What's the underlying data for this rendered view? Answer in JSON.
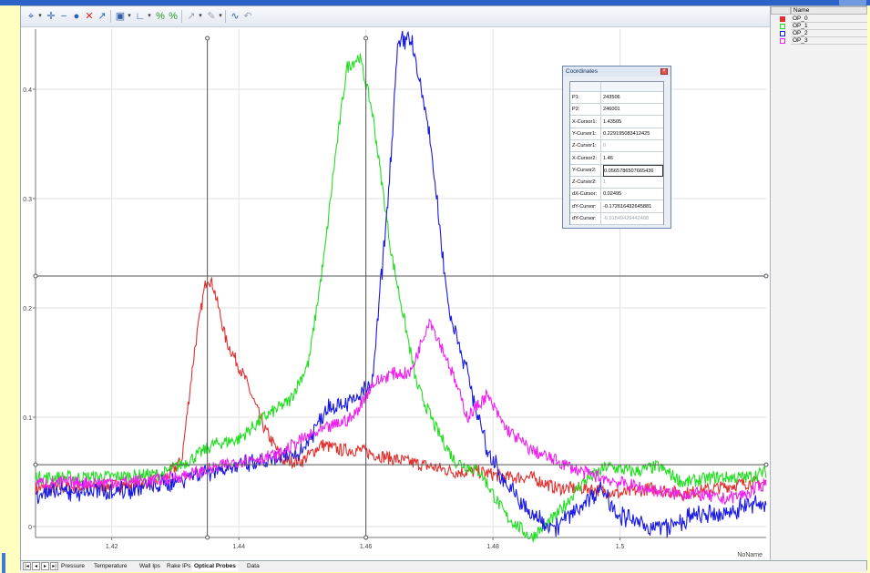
{
  "coordinates": {
    "title": "Coordinates",
    "rows": [
      {
        "key": "P1:",
        "value": "243506"
      },
      {
        "key": "P2:",
        "value": "246001"
      },
      {
        "key": "X-Cursor1:",
        "value": "1.43505"
      },
      {
        "key": "Y-Cursor1:",
        "value": "0.229195083412425"
      },
      {
        "key": "Z-Cursor1:",
        "value": "0"
      },
      {
        "key": "X-Cursor2:",
        "value": "1.46"
      },
      {
        "key": "Y-Cursor2:",
        "value": "0.0565786507665436"
      },
      {
        "key": "Z-Cursor2:",
        "value": "1"
      },
      {
        "key": "dX-Cursor:",
        "value": "0.02495"
      },
      {
        "key": "dY-Cursor:",
        "value": "-0.172616432645881"
      },
      {
        "key": "dY-Cursor:",
        "value": "-6.91849429442488"
      }
    ]
  },
  "legend": {
    "header": "Name",
    "items": [
      {
        "name": "OP_0",
        "color": "#e03030",
        "checked": true
      },
      {
        "name": "OP_1",
        "color": "#22dd22"
      },
      {
        "name": "OP_2",
        "color": "#1a1ae0"
      },
      {
        "name": "OP_3",
        "color": "#ee22ee"
      }
    ]
  },
  "tabs": [
    "Pressure",
    "Temperature",
    "Wall Ips",
    "Rake IPs",
    "Optical Probes",
    "Data"
  ],
  "active_tab": "Optical Probes",
  "toolbar_icons": [
    "select-icon",
    "pan-icon",
    "zoom-out-icon",
    "hand-icon",
    "delete-cursor-icon",
    "cursor-icon",
    "frame-icon",
    "axis-icon",
    "fit-x-icon",
    "fit-y-icon",
    "pointer-icon",
    "edit-icon",
    "measure-icon",
    "undo-icon"
  ],
  "chart_data": {
    "type": "line",
    "xlabel": "NoName",
    "xlim": [
      1.408,
      1.523
    ],
    "ylim": [
      -0.01,
      0.455
    ],
    "x_ticks": [
      1.42,
      1.44,
      1.46,
      1.48,
      1.5
    ],
    "x_tick_labels": [
      "1.42",
      "1.44",
      "1.46",
      "1.48",
      "1.5"
    ],
    "y_ticks": [
      0,
      0.1,
      0.2,
      0.3,
      0.4
    ],
    "y_tick_labels": [
      "0",
      "0.1",
      "0.2",
      "0.3",
      "0.4"
    ],
    "cursors": {
      "x1": 1.43505,
      "x2": 1.46,
      "y1": 0.229195,
      "y2": 0.056579
    },
    "grid": true,
    "series": [
      {
        "name": "OP_0",
        "color": "#e03030",
        "x": [
          1.408,
          1.415,
          1.422,
          1.428,
          1.431,
          1.433,
          1.4345,
          1.43505,
          1.436,
          1.438,
          1.441,
          1.444,
          1.447,
          1.45,
          1.453,
          1.456,
          1.459,
          1.462,
          1.466,
          1.47,
          1.474,
          1.478,
          1.482,
          1.486,
          1.49,
          1.495,
          1.5,
          1.505,
          1.51,
          1.515,
          1.52,
          1.523
        ],
        "y": [
          0.035,
          0.036,
          0.038,
          0.042,
          0.06,
          0.16,
          0.215,
          0.229,
          0.22,
          0.17,
          0.135,
          0.09,
          0.06,
          0.06,
          0.075,
          0.07,
          0.07,
          0.065,
          0.06,
          0.055,
          0.05,
          0.05,
          0.045,
          0.045,
          0.035,
          0.035,
          0.03,
          0.035,
          0.03,
          0.035,
          0.04,
          0.04
        ]
      },
      {
        "name": "OP_1",
        "color": "#22dd22",
        "x": [
          1.408,
          1.415,
          1.422,
          1.428,
          1.432,
          1.436,
          1.44,
          1.444,
          1.448,
          1.451,
          1.4535,
          1.455,
          1.457,
          1.459,
          1.461,
          1.464,
          1.468,
          1.471,
          1.474,
          1.478,
          1.482,
          1.486,
          1.49,
          1.494,
          1.498,
          1.502,
          1.506,
          1.51,
          1.515,
          1.52,
          1.523
        ],
        "y": [
          0.045,
          0.045,
          0.046,
          0.048,
          0.06,
          0.075,
          0.08,
          0.1,
          0.115,
          0.15,
          0.25,
          0.33,
          0.42,
          0.43,
          0.38,
          0.25,
          0.13,
          0.09,
          0.06,
          0.05,
          0.01,
          -0.01,
          0.01,
          0.04,
          0.055,
          0.05,
          0.055,
          0.04,
          0.045,
          0.045,
          0.05
        ]
      },
      {
        "name": "OP_2",
        "color": "#1a1ae0",
        "x": [
          1.408,
          1.415,
          1.422,
          1.428,
          1.434,
          1.44,
          1.446,
          1.45,
          1.454,
          1.458,
          1.461,
          1.4635,
          1.465,
          1.467,
          1.47,
          1.473,
          1.476,
          1.479,
          1.482,
          1.486,
          1.49,
          1.494,
          1.497,
          1.5,
          1.504,
          1.508,
          1.512,
          1.516,
          1.52,
          1.523
        ],
        "y": [
          0.03,
          0.032,
          0.034,
          0.038,
          0.05,
          0.055,
          0.06,
          0.07,
          0.11,
          0.115,
          0.13,
          0.3,
          0.44,
          0.45,
          0.36,
          0.2,
          0.14,
          0.07,
          0.04,
          0.01,
          0.0,
          0.02,
          0.035,
          0.01,
          0.0,
          0.0,
          0.01,
          0.01,
          0.02,
          0.02
        ]
      },
      {
        "name": "OP_3",
        "color": "#ee22ee",
        "x": [
          1.408,
          1.415,
          1.422,
          1.428,
          1.434,
          1.44,
          1.446,
          1.45,
          1.454,
          1.458,
          1.461,
          1.464,
          1.467,
          1.47,
          1.473,
          1.476,
          1.479,
          1.482,
          1.486,
          1.49,
          1.494,
          1.497,
          1.5,
          1.504,
          1.508,
          1.512,
          1.516,
          1.52,
          1.523
        ],
        "y": [
          0.04,
          0.04,
          0.041,
          0.043,
          0.05,
          0.06,
          0.065,
          0.08,
          0.09,
          0.1,
          0.13,
          0.14,
          0.14,
          0.19,
          0.15,
          0.1,
          0.12,
          0.09,
          0.07,
          0.06,
          0.05,
          0.045,
          0.04,
          0.035,
          0.03,
          0.03,
          0.025,
          0.03,
          0.04
        ]
      }
    ]
  }
}
